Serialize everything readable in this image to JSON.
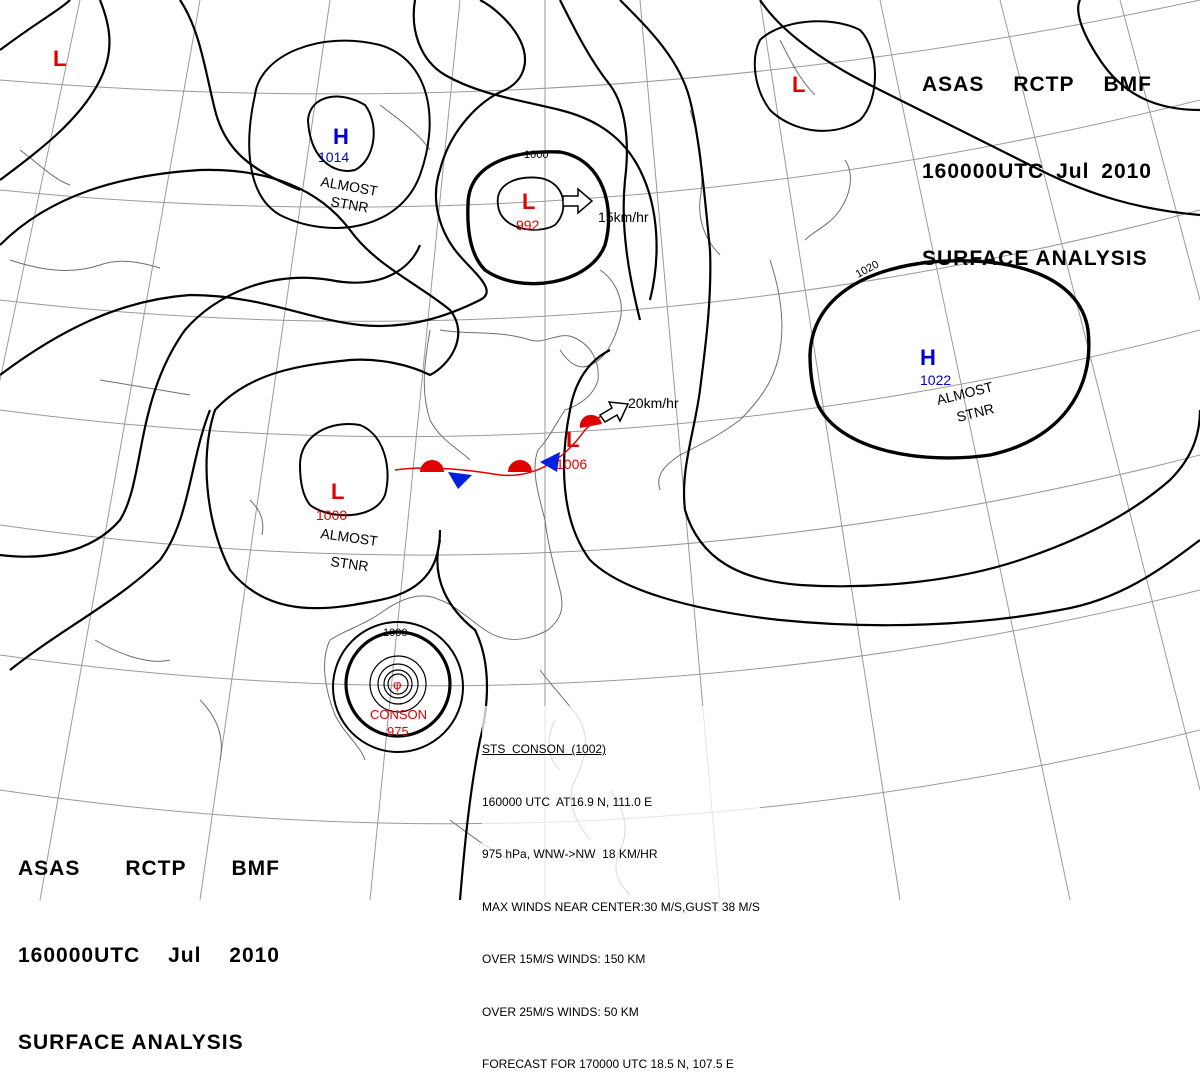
{
  "header": {
    "line1": [
      "ASAS",
      "RCTP",
      "BMF"
    ],
    "line2": [
      "160000UTC",
      "Jul",
      "2010"
    ],
    "line3": "SURFACE ANALYSIS"
  },
  "pressure_systems": [
    {
      "id": "low-nw-corner",
      "symbol": "L",
      "value": "",
      "color": "#e00000"
    },
    {
      "id": "high-north",
      "symbol": "H",
      "value": "1014",
      "color": "#0000d0"
    },
    {
      "id": "low-center",
      "symbol": "L",
      "value": "992",
      "color": "#e00000"
    },
    {
      "id": "low-ne",
      "symbol": "L",
      "value": "",
      "color": "#e00000"
    },
    {
      "id": "high-east",
      "symbol": "H",
      "value": "1022",
      "color": "#0000d0"
    },
    {
      "id": "low-west",
      "symbol": "L",
      "value": "1000",
      "color": "#e00000"
    },
    {
      "id": "low-front",
      "symbol": "L",
      "value": "1006",
      "color": "#e00000"
    }
  ],
  "labels": {
    "almost_stnr_1": [
      "ALMOST",
      "STNR"
    ],
    "almost_stnr_2": [
      "ALMOST",
      "STNR"
    ],
    "almost_stnr_3": [
      "ALMOST",
      "STNR"
    ],
    "speed_1": "15km/hr",
    "speed_2": "20km/hr"
  },
  "isobar_labels": [
    "1000",
    "1020",
    "1000"
  ],
  "typhoon": {
    "name": "CONSON",
    "pressure": "975",
    "symbol": "φ",
    "info_lines": [
      "STS  CONSON  (1002)",
      "160000 UTC  AT16.9 N, 111.0 E",
      "975 hPa, WNW->NW  18 KM/HR",
      "MAX WINDS NEAR CENTER:30 M/S,GUST 38 M/S",
      "OVER 15M/S WINDS: 150 KM",
      "OVER 25M/S WINDS: 50 KM",
      "FORECAST FOR 170000 UTC 18.5 N, 107.5 E"
    ]
  },
  "colors": {
    "low": "#e00000",
    "high": "#0000d0",
    "isobar": "#000000",
    "coast": "#777777",
    "grid": "#999999"
  }
}
